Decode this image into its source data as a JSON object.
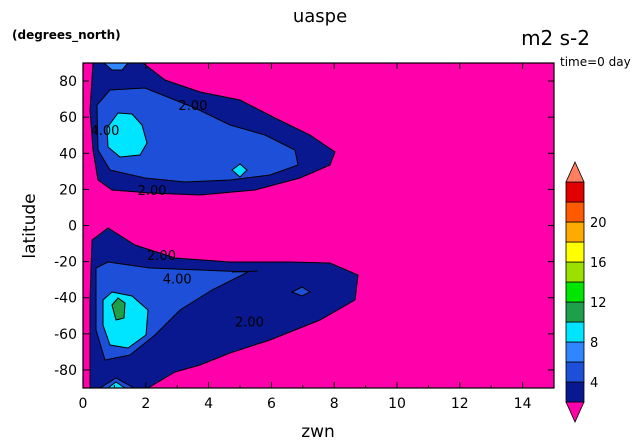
{
  "header": {
    "title": "uaspe",
    "y_units": "(degrees_north)",
    "value_units": "m2 s-2",
    "time_label": "time=0 day"
  },
  "chart_data": {
    "type": "heatmap",
    "title": "uaspe",
    "xlabel": "zwn",
    "ylabel": "latitude",
    "xlim": [
      0,
      15
    ],
    "ylim": [
      -90,
      90
    ],
    "x_ticks": [
      0,
      2,
      4,
      6,
      8,
      10,
      12,
      14
    ],
    "y_ticks": [
      -80,
      -60,
      -40,
      -20,
      0,
      20,
      40,
      60,
      80
    ],
    "grid": false,
    "contour_levels": [
      2,
      4,
      6,
      8,
      10,
      12,
      14,
      16,
      18,
      20,
      22
    ],
    "contour_labels": [
      {
        "text": "2.00",
        "x": 3.5,
        "y": 64
      },
      {
        "text": "4.00",
        "x": 0.7,
        "y": 50
      },
      {
        "text": "2.00",
        "x": 2.2,
        "y": 17
      },
      {
        "text": "2.00",
        "x": 2.5,
        "y": -19
      },
      {
        "text": "4.00",
        "x": 3.0,
        "y": -32
      },
      {
        "text": "2.00",
        "x": 5.3,
        "y": -56
      }
    ],
    "colorbar": {
      "colors": [
        "#ff00aa",
        "#0a1890",
        "#1e4fd8",
        "#2f86ff",
        "#00e5ff",
        "#1ea04a",
        "#00e600",
        "#9be000",
        "#ffff00",
        "#ffaa00",
        "#ff5a00",
        "#e00000",
        "#ff7f60"
      ],
      "tick_labels": [
        "4",
        "8",
        "12",
        "16",
        "20"
      ],
      "tick_values": [
        4,
        8,
        12,
        16,
        20
      ]
    }
  }
}
